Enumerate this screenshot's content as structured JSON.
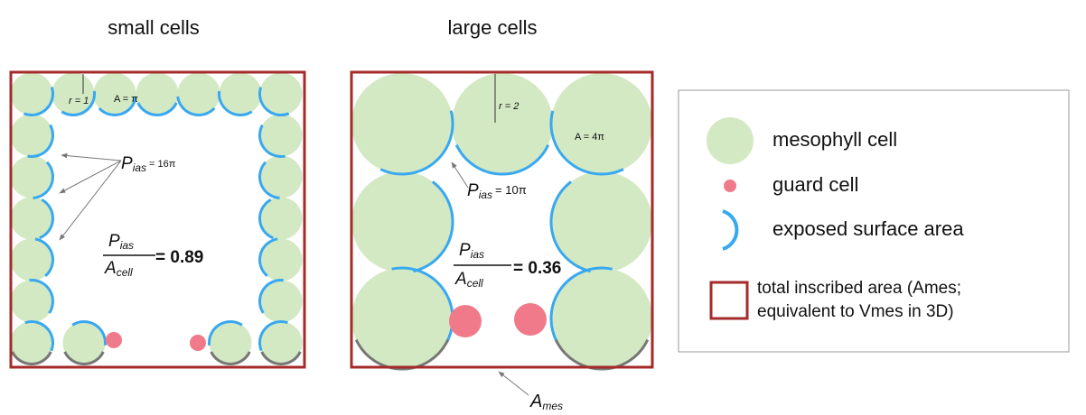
{
  "panels": [
    {
      "title": "small cells",
      "radius_label": "r = 1",
      "area_label": "A = π",
      "perimeter": {
        "symbol": "P",
        "subscript": "ias",
        "value": "= 16π"
      },
      "ratio": {
        "numerator": "P",
        "numerator_subscript": "ias",
        "denominator": "A",
        "denominator_subscript": "cell",
        "value": "= 0.89"
      }
    },
    {
      "title": "large cells",
      "radius_label": "r = 2",
      "area_label": "A = 4π",
      "perimeter": {
        "symbol": "P",
        "subscript": "ias",
        "value": "= 10π"
      },
      "ratio": {
        "numerator": "P",
        "numerator_subscript": "ias",
        "denominator": "A",
        "denominator_subscript": "cell",
        "value": "= 0.36"
      }
    }
  ],
  "mesophyll_area_label": {
    "symbol": "A",
    "subscript": "mes"
  },
  "legend": {
    "mesophyll": "mesophyll cell",
    "guard": "guard cell",
    "exposed": "exposed surface area",
    "total": [
      "total inscribed area (Ames;",
      "equivalent to Vmes in 3D)"
    ]
  }
}
